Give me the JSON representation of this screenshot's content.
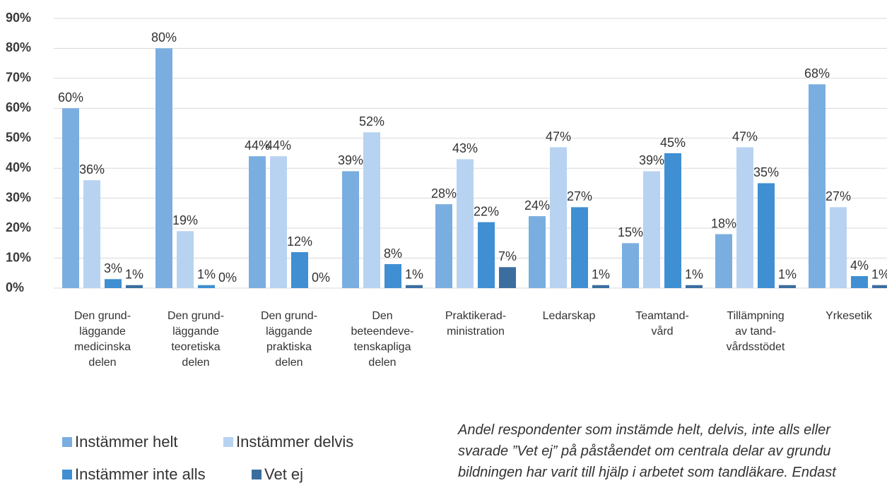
{
  "chart_data": {
    "type": "bar",
    "categories": [
      "Den grund-\nläggande\nmedicinska\ndelen",
      "Den grund-\nläggande\nteoretiska\ndelen",
      "Den grund-\nläggande\npraktiska\ndelen",
      "Den\nbeteendeve-\ntenskapliga\ndelen",
      "Praktikerad-\nministration",
      "Ledarskap",
      "Teamtand-\nvård",
      "Tillämpning\nav tand-\nvårdsstödet",
      "Yrkesetik"
    ],
    "series": [
      {
        "name": "Instämmer helt",
        "color": "#7aaee0",
        "values": [
          60,
          80,
          44,
          39,
          28,
          24,
          15,
          18,
          68
        ],
        "value_labels": [
          "60%",
          "80%",
          "44%",
          "39%",
          "28%",
          "24%",
          "15%",
          "18%",
          "68%"
        ]
      },
      {
        "name": "Instämmer delvis",
        "color": "#b8d3f1",
        "values": [
          36,
          19,
          44,
          52,
          43,
          47,
          39,
          47,
          27
        ],
        "value_labels": [
          "36%",
          "19%",
          "44%",
          "52%",
          "43%",
          "47%",
          "39%",
          "47%",
          "27%"
        ]
      },
      {
        "name": "Instämmer inte alls",
        "color": "#3f8fd2",
        "values": [
          3,
          1,
          12,
          8,
          22,
          27,
          45,
          35,
          4
        ],
        "value_labels": [
          "3%",
          "1%",
          "12%",
          "8%",
          "22%",
          "27%",
          "45%",
          "35%",
          "4%"
        ]
      },
      {
        "name": "Vet ej",
        "color": "#3b6e9f",
        "values": [
          1,
          0,
          0,
          1,
          7,
          1,
          1,
          1,
          1
        ],
        "value_labels": [
          "1%",
          "0%",
          "0%",
          "1%",
          "7%",
          "1%",
          "1%",
          "1%",
          "1%"
        ]
      }
    ],
    "ylim": [
      0,
      90
    ],
    "yticks": [
      {
        "value": 0,
        "label": "0%"
      },
      {
        "value": 10,
        "label": "10%"
      },
      {
        "value": 20,
        "label": "20%"
      },
      {
        "value": 30,
        "label": "30%"
      },
      {
        "value": 40,
        "label": "40%"
      },
      {
        "value": 50,
        "label": "50%"
      },
      {
        "value": 60,
        "label": "60%"
      },
      {
        "value": 70,
        "label": "70%"
      },
      {
        "value": 80,
        "label": "80%"
      },
      {
        "value": 90,
        "label": "90%"
      }
    ],
    "grid": true,
    "annotation": "Andel respondenter som instämde helt, delvis, inte alls eller\nsvarade ”Vet ej” på påståendet om centrala delar av grundu\nbildningen har varit till hjälp i arbetet som tandläkare. Endast"
  }
}
